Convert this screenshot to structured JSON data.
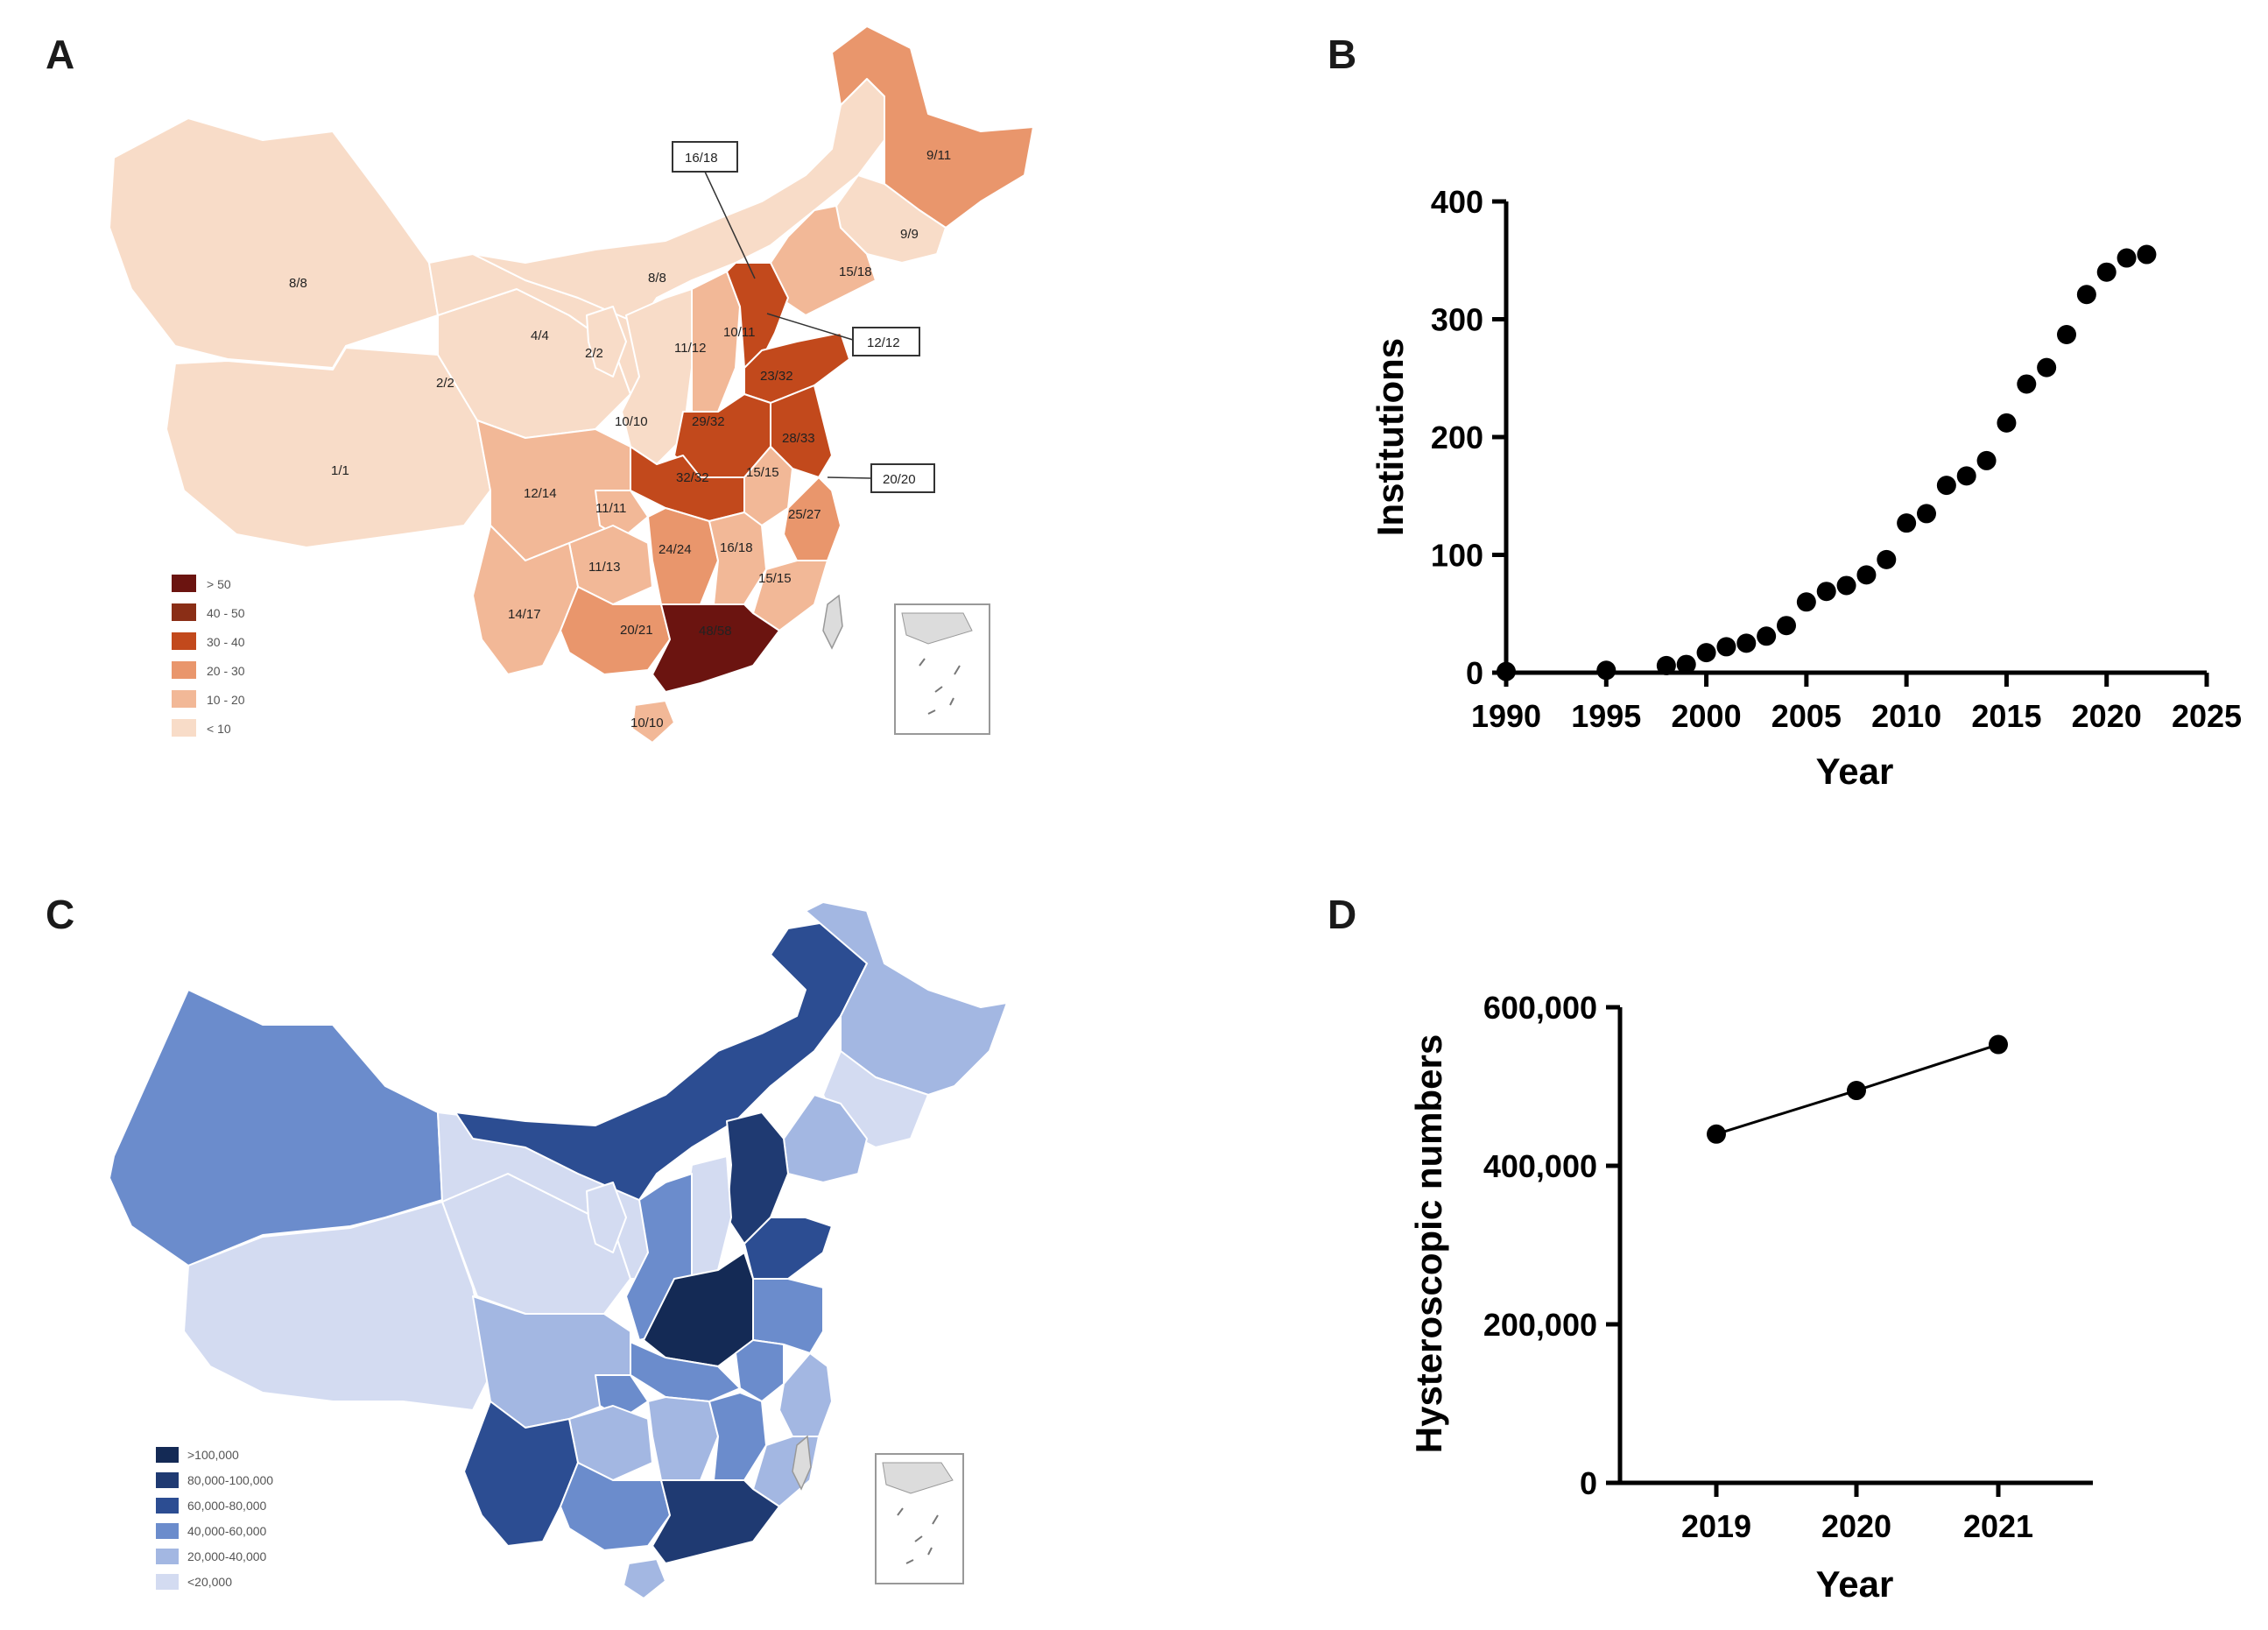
{
  "panels": {
    "A": {
      "label": "A",
      "legend": [
        {
          "text": "> 50",
          "color": "#6b1410"
        },
        {
          "text": "40 - 50",
          "color": "#8a2e16"
        },
        {
          "text": "30 - 40",
          "color": "#c2491c"
        },
        {
          "text": "20 - 30",
          "color": "#e9966c"
        },
        {
          "text": "10 - 20",
          "color": "#f2b897"
        },
        {
          "text": "< 10",
          "color": "#f8dcc8"
        }
      ],
      "region_labels": [
        "8/8",
        "1/1",
        "2/2",
        "4/4",
        "2/2",
        "8/8",
        "9/11",
        "9/9",
        "15/18",
        "11/12",
        "10/11",
        "23/32",
        "10/10",
        "29/32",
        "12/14",
        "11/11",
        "11/13",
        "14/17",
        "20/21",
        "24/24",
        "32/32",
        "15/15",
        "28/33",
        "16/18",
        "25/27",
        "15/15",
        "48/58",
        "10/10"
      ],
      "callouts": [
        "16/18",
        "12/12",
        "20/20"
      ]
    },
    "B": {
      "label": "B"
    },
    "C": {
      "label": "C",
      "legend": [
        {
          "text": ">100,000",
          "color": "#142a55"
        },
        {
          "text": "80,000-100,000",
          "color": "#1f3a72"
        },
        {
          "text": "60,000-80,000",
          "color": "#2c4d92"
        },
        {
          "text": "40,000-60,000",
          "color": "#6b8ccc"
        },
        {
          "text": "20,000-40,000",
          "color": "#a3b7e2"
        },
        {
          "text": "<20,000",
          "color": "#d3dbf1"
        }
      ]
    },
    "D": {
      "label": "D"
    }
  },
  "chart_data": [
    {
      "type": "scatter",
      "panel": "B",
      "xlabel": "Year",
      "ylabel": "Institutions",
      "xlim": [
        1990,
        2025
      ],
      "ylim": [
        0,
        400
      ],
      "xticks": [
        1990,
        1995,
        2000,
        2005,
        2010,
        2015,
        2020,
        2025
      ],
      "yticks": [
        0,
        100,
        200,
        300,
        400
      ],
      "x": [
        1990,
        1995,
        1998,
        1999,
        2000,
        2001,
        2002,
        2003,
        2004,
        2005,
        2006,
        2007,
        2008,
        2009,
        2010,
        2011,
        2012,
        2013,
        2014,
        2015,
        2016,
        2017,
        2018,
        2019,
        2020,
        2021,
        2022
      ],
      "y": [
        1,
        2,
        6,
        7,
        17,
        22,
        25,
        31,
        40,
        60,
        69,
        74,
        83,
        96,
        127,
        135,
        159,
        167,
        180,
        212,
        245,
        259,
        287,
        321,
        340,
        352,
        355
      ]
    },
    {
      "type": "line",
      "panel": "D",
      "xlabel": "Year",
      "ylabel": "Hysteroscopic numbers",
      "categories": [
        "2019",
        "2020",
        "2021"
      ],
      "values": [
        440000,
        495000,
        553000
      ],
      "ylim": [
        0,
        600000
      ],
      "yticks": [
        0,
        200000,
        400000,
        600000
      ],
      "ytick_labels": [
        "0",
        "200,000",
        "400,000",
        "600,000"
      ]
    }
  ]
}
